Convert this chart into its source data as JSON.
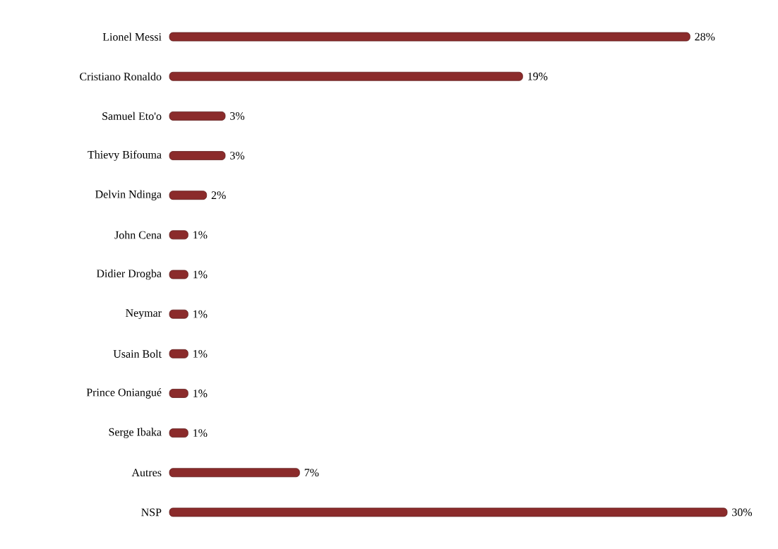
{
  "chart_data": {
    "type": "bar",
    "orientation": "horizontal",
    "color": "#8b2b2b",
    "categories": [
      "Lionel Messi",
      "Cristiano Ronaldo",
      "Samuel Eto'o",
      "Thievy Bifouma",
      "Delvin Ndinga",
      "John Cena",
      "Didier Drogba",
      "Neymar",
      "Usain Bolt",
      "Prince Oniangué",
      "Serge Ibaka",
      "Autres",
      "NSP"
    ],
    "values": [
      28,
      19,
      3,
      3,
      2,
      1,
      1,
      1,
      1,
      1,
      1,
      7,
      30
    ],
    "value_labels": [
      "28%",
      "19%",
      "3%",
      "3%",
      "2%",
      "1%",
      "1%",
      "1%",
      "1%",
      "1%",
      "1%",
      "7%",
      "30%"
    ]
  }
}
